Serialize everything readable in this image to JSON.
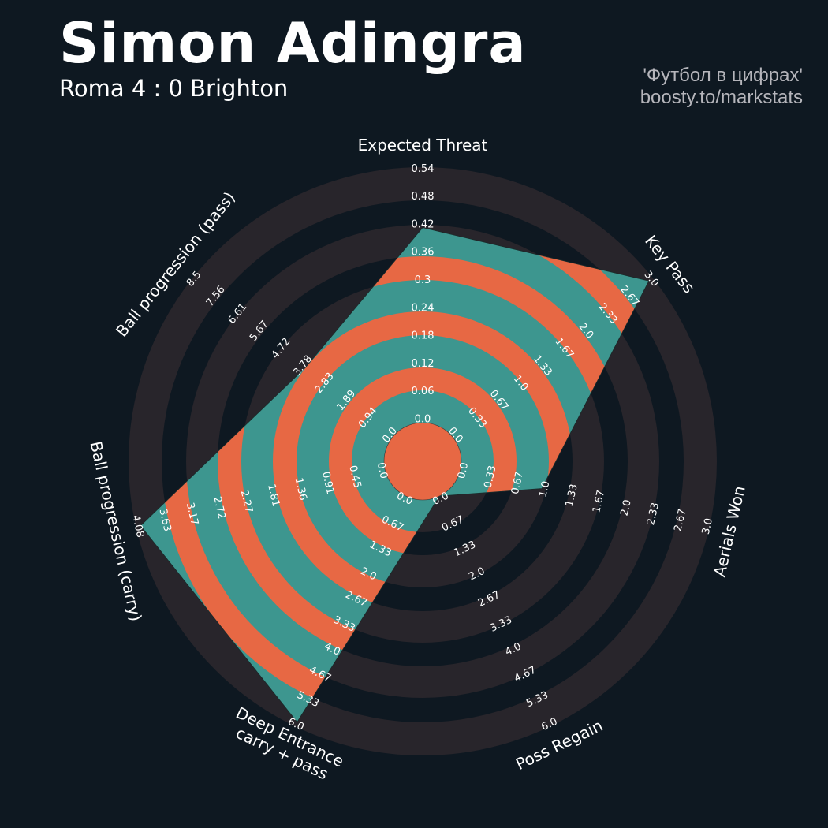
{
  "header": {
    "title": "Simon Adingra",
    "subtitle": "Roma 4 : 0 Brighton",
    "credit_line1": "'Футбол в цифрах'",
    "credit_line2": "boosty.to/markstats"
  },
  "colors": {
    "background": "#0e1821",
    "ring_gray": "#28252b",
    "fill_teal": "#3d968f",
    "fill_orange": "#e76844",
    "text": "#ffffff"
  },
  "chart_data": {
    "type": "radar",
    "params": [
      "Expected Threat",
      "Ball progression (pass)",
      "Ball progression (carry)",
      "Deep Entrance\ncarry + pass",
      "Poss Regain",
      "Aerials Won",
      "Key Pass"
    ],
    "values": [
      0.42,
      3.78,
      4.08,
      6.0,
      0.0,
      1.0,
      3.0
    ],
    "ranges": [
      [
        0,
        0.54
      ],
      [
        0,
        8.5
      ],
      [
        0,
        4.08
      ],
      [
        0,
        6.0
      ],
      [
        0,
        6.0
      ],
      [
        0,
        3.0
      ],
      [
        0,
        3.0
      ]
    ],
    "tick_labels": [
      [
        "0.0",
        "0.06",
        "0.12",
        "0.18",
        "0.24",
        "0.3",
        "0.36",
        "0.42",
        "0.48",
        "0.54"
      ],
      [
        "0.0",
        "0.94",
        "1.89",
        "2.83",
        "3.78",
        "4.72",
        "5.67",
        "6.61",
        "7.56",
        "8.5"
      ],
      [
        "0.0",
        "0.45",
        "0.91",
        "1.36",
        "1.81",
        "2.27",
        "2.72",
        "3.17",
        "3.63",
        "4.08"
      ],
      [
        "0.0",
        "0.67",
        "1.33",
        "2.0",
        "2.67",
        "3.33",
        "4.0",
        "4.67",
        "5.33",
        "6.0"
      ],
      [
        "0.0",
        "0.67",
        "1.33",
        "2.0",
        "2.67",
        "3.33",
        "4.0",
        "4.67",
        "5.33",
        "6.0"
      ],
      [
        "0.0",
        "0.33",
        "0.67",
        "1.0",
        "1.33",
        "1.67",
        "2.0",
        "2.33",
        "2.67",
        "3.0"
      ],
      [
        "0.0",
        "0.33",
        "0.67",
        "1.0",
        "1.33",
        "1.67",
        "2.0",
        "2.33",
        "2.67",
        "3.0"
      ]
    ]
  }
}
